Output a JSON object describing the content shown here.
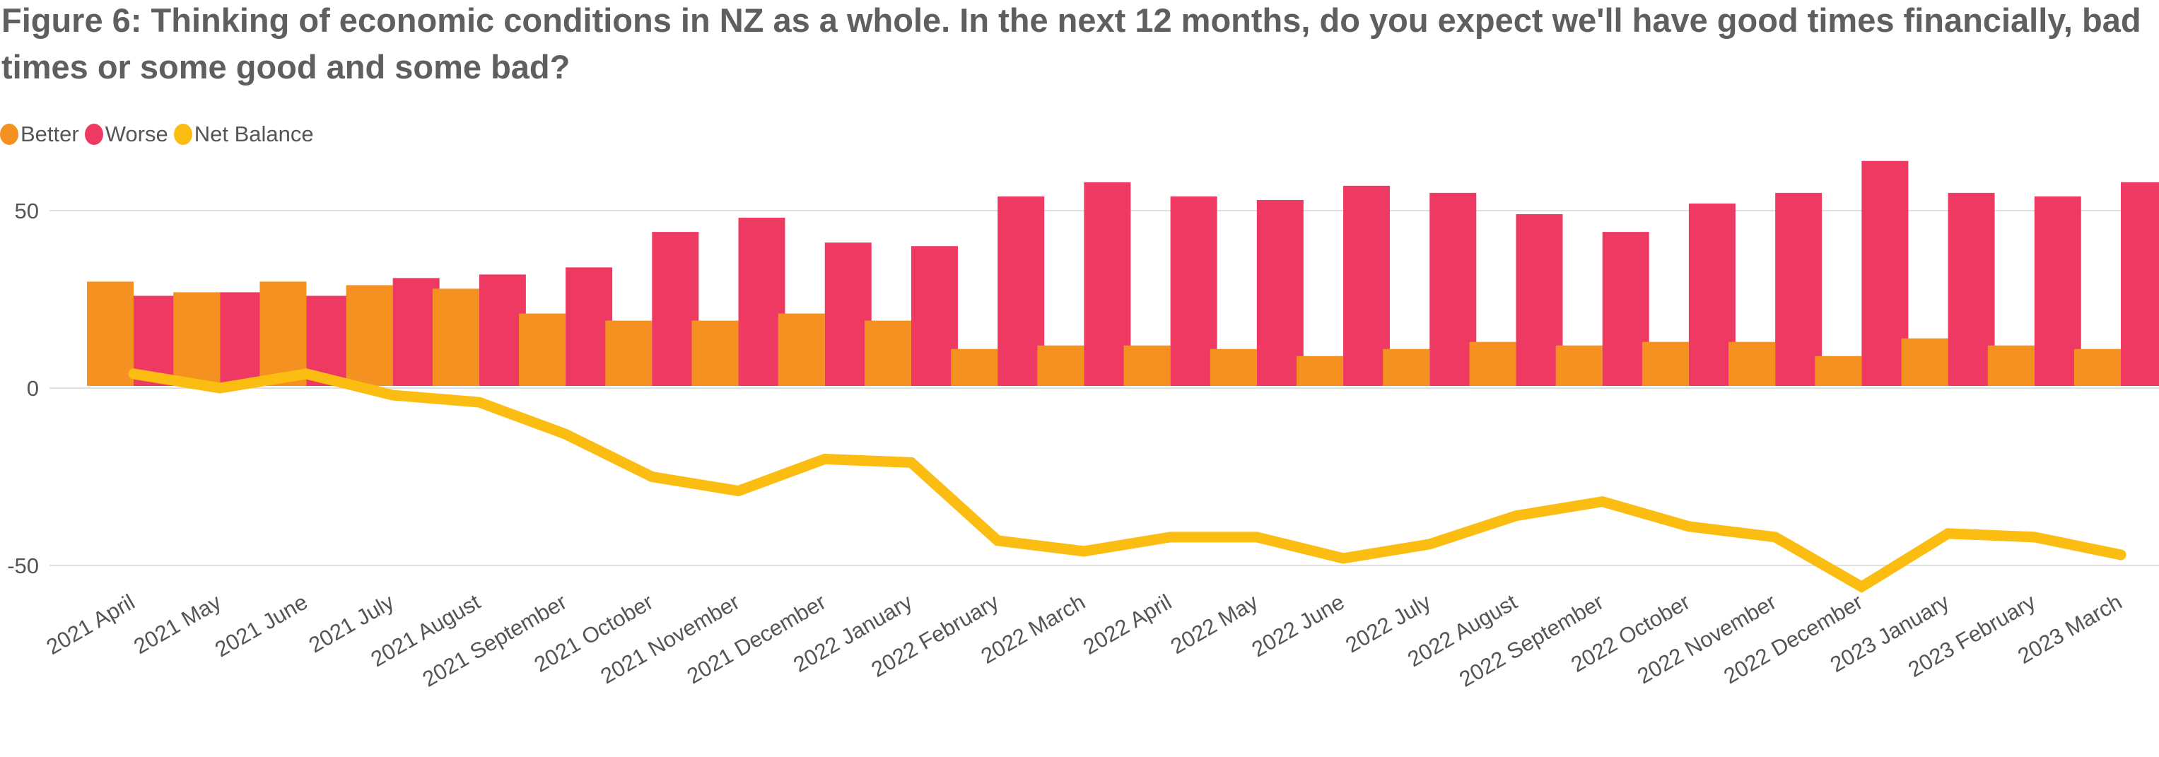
{
  "chart_data": {
    "type": "bar",
    "title": "Figure 6: Thinking of economic conditions in NZ as a whole. In the next 12 months, do you expect we'll have good times financially, bad times or some good and some bad?",
    "categories": [
      "2021 April",
      "2021 May",
      "2021 June",
      "2021 July",
      "2021 August",
      "2021 September",
      "2021 October",
      "2021 November",
      "2021 December",
      "2022 January",
      "2022 February",
      "2022 March",
      "2022 April",
      "2022 May",
      "2022 June",
      "2022 July",
      "2022 August",
      "2022 September",
      "2022 October",
      "2022 November",
      "2022 December",
      "2023 January",
      "2023 February",
      "2023 March"
    ],
    "series": [
      {
        "name": "Better",
        "type": "bar",
        "color": "#f59120",
        "values": [
          30,
          27,
          30,
          29,
          28,
          21,
          19,
          19,
          21,
          19,
          11,
          12,
          12,
          11,
          9,
          11,
          13,
          12,
          13,
          13,
          9,
          14,
          12,
          11
        ]
      },
      {
        "name": "Worse",
        "type": "bar",
        "color": "#ee3a63",
        "values": [
          26,
          27,
          26,
          31,
          32,
          34,
          44,
          48,
          41,
          40,
          54,
          58,
          54,
          53,
          57,
          55,
          49,
          44,
          52,
          55,
          64,
          55,
          54,
          58
        ]
      },
      {
        "name": "Net Balance",
        "type": "line",
        "color": "#fcbd12",
        "values": [
          4,
          0,
          4,
          -2,
          -4,
          -13,
          -25,
          -29,
          -20,
          -21,
          -43,
          -46,
          -42,
          -42,
          -48,
          -44,
          -36,
          -32,
          -39,
          -42,
          -56,
          -41,
          -42,
          -47
        ]
      }
    ],
    "yticks": [
      50,
      0,
      -50
    ],
    "ylim": [
      -60,
      66
    ],
    "grid": true,
    "legend_position": "top-left",
    "xlabel": "",
    "ylabel": ""
  }
}
